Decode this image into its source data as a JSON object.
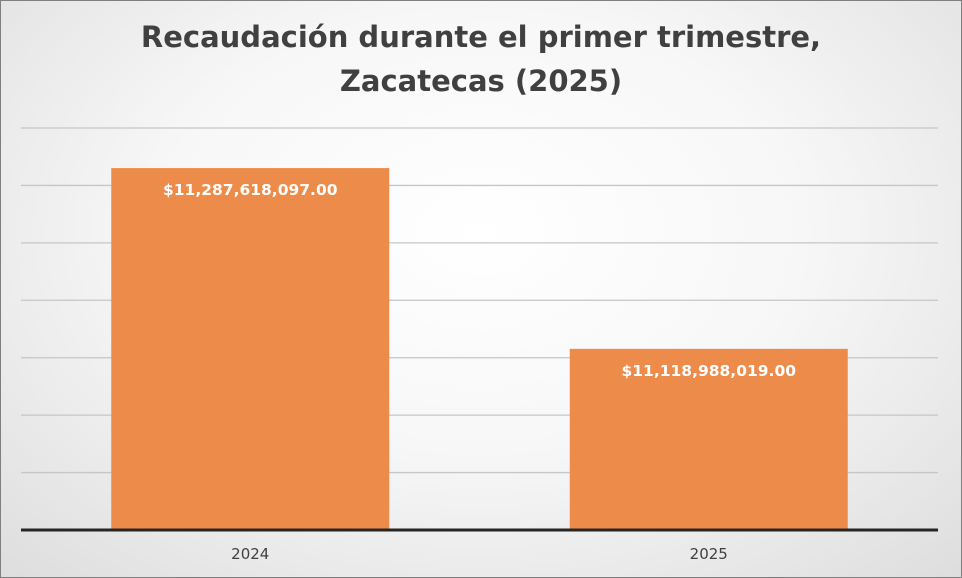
{
  "chart_data": {
    "type": "bar",
    "title": "Recaudación durante el primer trimestre,",
    "subtitle": "Zacatecas (2025)",
    "categories": [
      "2024",
      "2025"
    ],
    "values": [
      11287618097.0,
      11118988019.0
    ],
    "data_labels": [
      "$11,287,618,097.00",
      "$11,118,988,019.00"
    ],
    "xlabel": "",
    "ylabel": "",
    "ylim": [
      10950000000,
      11325000000
    ],
    "grid": true,
    "legend": "none",
    "bar_color": "#ed8c4a",
    "label_color": "#ffffff"
  }
}
